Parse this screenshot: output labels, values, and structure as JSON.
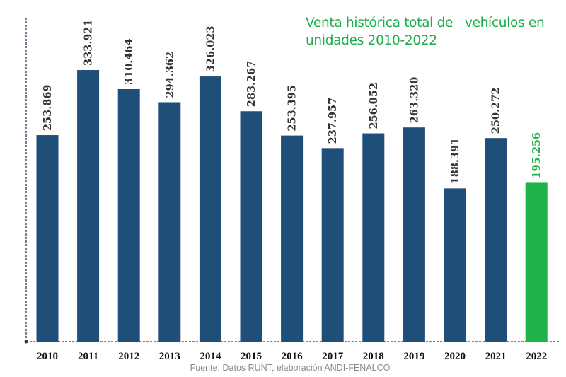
{
  "chart_data": {
    "type": "bar",
    "title_lines": [
      "Venta histórica total de   vehículos en",
      "unidades 2010-2022"
    ],
    "categories": [
      "2010",
      "2011",
      "2012",
      "2013",
      "2014",
      "2015",
      "2016",
      "2017",
      "2018",
      "2019",
      "2020",
      "2021",
      "2022"
    ],
    "values": [
      253869,
      333921,
      310464,
      294362,
      326023,
      283267,
      253395,
      237957,
      256052,
      263320,
      188391,
      250272,
      195256
    ],
    "data_labels": [
      "253.869",
      "333.921",
      "310.464",
      "294.362",
      "326.023",
      "283.267",
      "253.395",
      "237.957",
      "256.052",
      "263.320",
      "188.391",
      "250.272",
      "195.256"
    ],
    "highlight_index": 12,
    "xlabel": "",
    "ylabel": "",
    "ylim": [
      0,
      333921
    ],
    "grid": false,
    "source": "Fuente: Datos RUNT, elaboración ANDI-FENALCO"
  },
  "colors": {
    "bar": "#1f4e79",
    "highlight": "#1db34a",
    "title": "#1fae4e",
    "axis": "#1f3b5c"
  }
}
